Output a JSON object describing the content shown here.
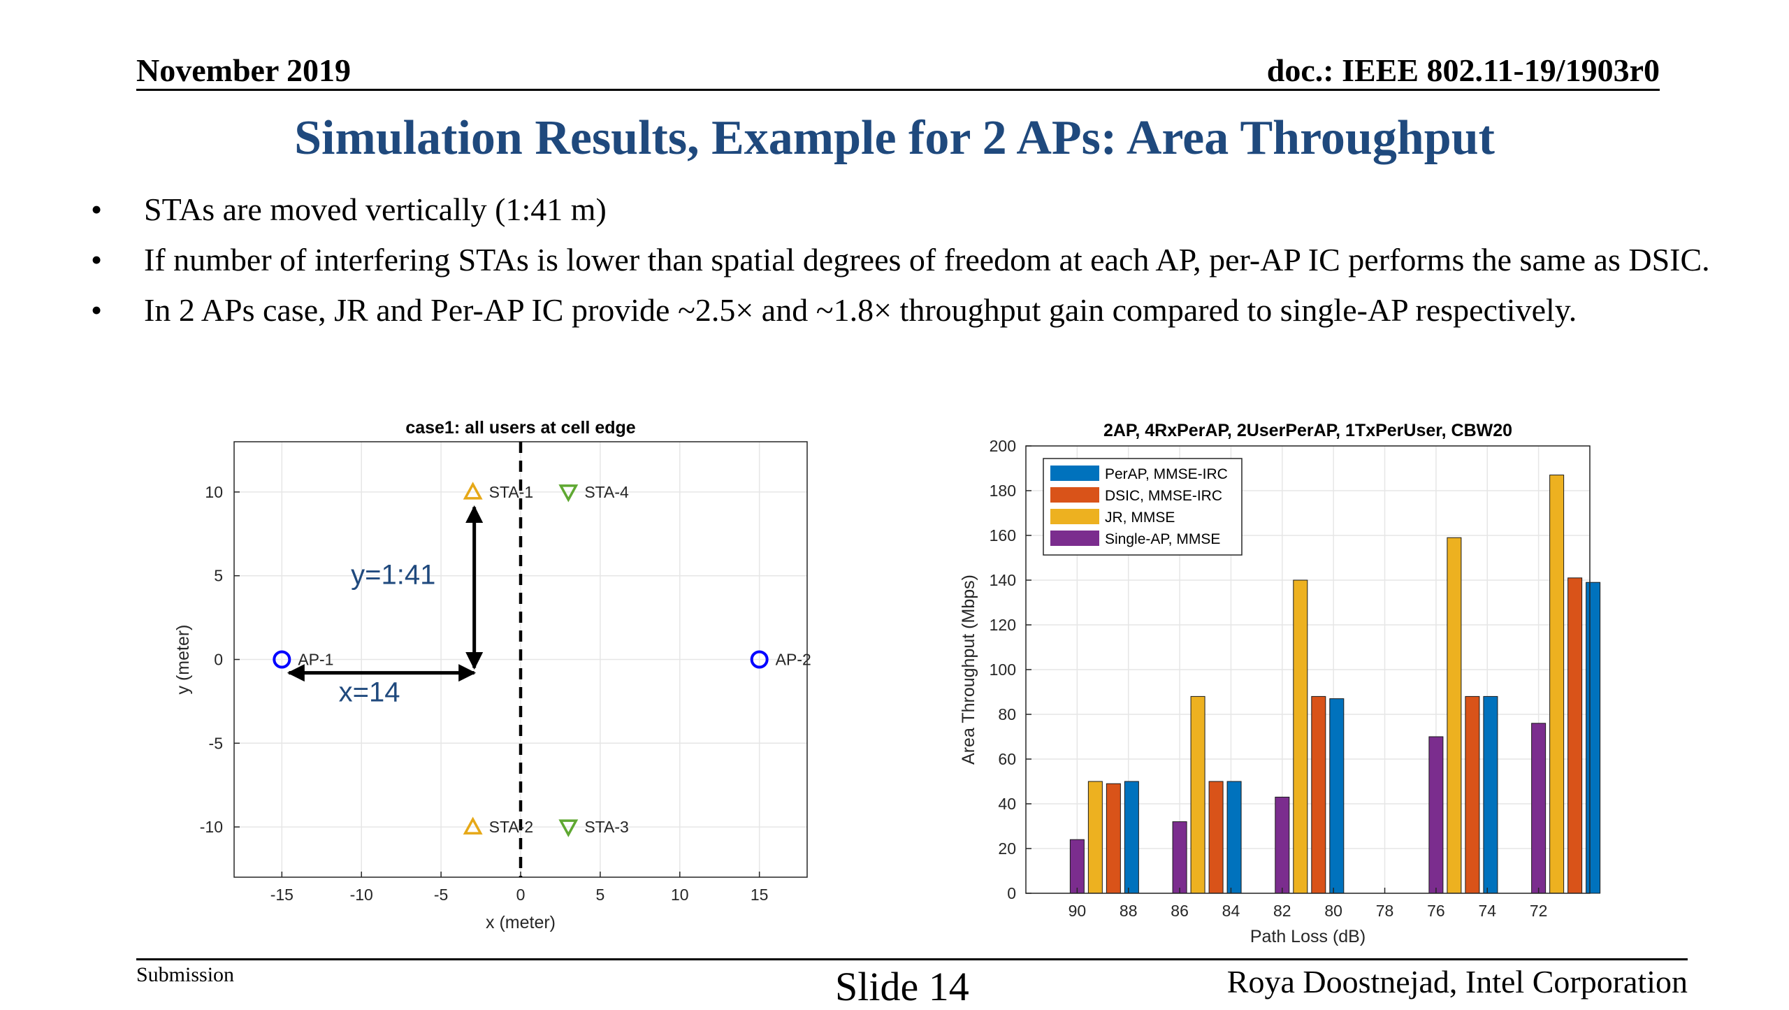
{
  "header": {
    "date": "November 2019",
    "doc": "doc.: IEEE 802.11-19/1903r0"
  },
  "title": "Simulation Results, Example for 2 APs:  Area Throughput",
  "bullets": [
    "STAs are moved vertically (1:41 m)",
    "If number of interfering STAs is lower than spatial degrees of freedom at each AP, per-AP IC performs the same as DSIC.",
    "In 2 APs case, JR and Per-AP IC provide ~2.5× and ~1.8× throughput gain compared to single-AP respectively."
  ],
  "bullet_symbol": "•",
  "footer": {
    "submission": "Submission",
    "slide": "Slide 14",
    "author": "Roya Doostnejad, Intel Corporation"
  },
  "colors": {
    "title": "#1f497d",
    "ap": "#0000ff",
    "sta_up": "#e6a817",
    "sta_down": "#5fa832",
    "annotation": "#1f497d"
  },
  "chart_data": [
    {
      "type": "scatter",
      "title": "case1: all users at cell edge",
      "xlabel": "x (meter)",
      "ylabel": "y (meter)",
      "xlim": [
        -18,
        18
      ],
      "ylim": [
        -13,
        13
      ],
      "xticks": [
        "-15",
        "-10",
        "-5",
        "0",
        "5",
        "10",
        "15"
      ],
      "yticks": [
        "10",
        "5",
        "0",
        "-5",
        "-10"
      ],
      "grid": true,
      "boundary_x": 0,
      "points": [
        {
          "label": "AP-1",
          "x": -15,
          "y": 0,
          "marker": "circle"
        },
        {
          "label": "AP-2",
          "x": 15,
          "y": 0,
          "marker": "circle"
        },
        {
          "label": "STA-1",
          "x": -3,
          "y": 10,
          "marker": "triangle-up"
        },
        {
          "label": "STA-2",
          "x": -3,
          "y": -10,
          "marker": "triangle-up"
        },
        {
          "label": "STA-3",
          "x": 3,
          "y": -10,
          "marker": "triangle-down"
        },
        {
          "label": "STA-4",
          "x": 3,
          "y": 10,
          "marker": "triangle-down"
        }
      ],
      "annotations": [
        {
          "text": "y=1:41",
          "x": -8,
          "y": 5
        },
        {
          "text": "x=14",
          "x": -9.5,
          "y": -2
        }
      ]
    },
    {
      "type": "bar",
      "title": "2AP, 4RxPerAP, 2UserPerAP, 1TxPerUser, CBW20",
      "xlabel": "Path Loss (dB)",
      "ylabel": "Area Throughput (Mbps)",
      "ylim": [
        0,
        200
      ],
      "yticks": [
        "0",
        "20",
        "40",
        "60",
        "80",
        "100",
        "120",
        "140",
        "160",
        "180",
        "200"
      ],
      "xticks": [
        "90",
        "88",
        "86",
        "84",
        "82",
        "80",
        "78",
        "76",
        "74",
        "72"
      ],
      "xlim": [
        92,
        70
      ],
      "categories": [
        90,
        86,
        82,
        76,
        72
      ],
      "grid": true,
      "legend_position": "top-left",
      "series": [
        {
          "name": "Single-AP, MMSE",
          "color": "#7b2d8e",
          "values": [
            24,
            32,
            43,
            70,
            76
          ]
        },
        {
          "name": "JR, MMSE",
          "color": "#edb120",
          "values": [
            50,
            88,
            140,
            159,
            187
          ]
        },
        {
          "name": "DSIC, MMSE-IRC",
          "color": "#d95319",
          "values": [
            49,
            50,
            88,
            88,
            141
          ]
        },
        {
          "name": "PerAP, MMSE-IRC",
          "color": "#0072bd",
          "values": [
            50,
            50,
            87,
            88,
            139
          ]
        }
      ],
      "legend_order": [
        "PerAP, MMSE-IRC",
        "DSIC, MMSE-IRC",
        "JR, MMSE",
        "Single-AP, MMSE"
      ]
    }
  ]
}
